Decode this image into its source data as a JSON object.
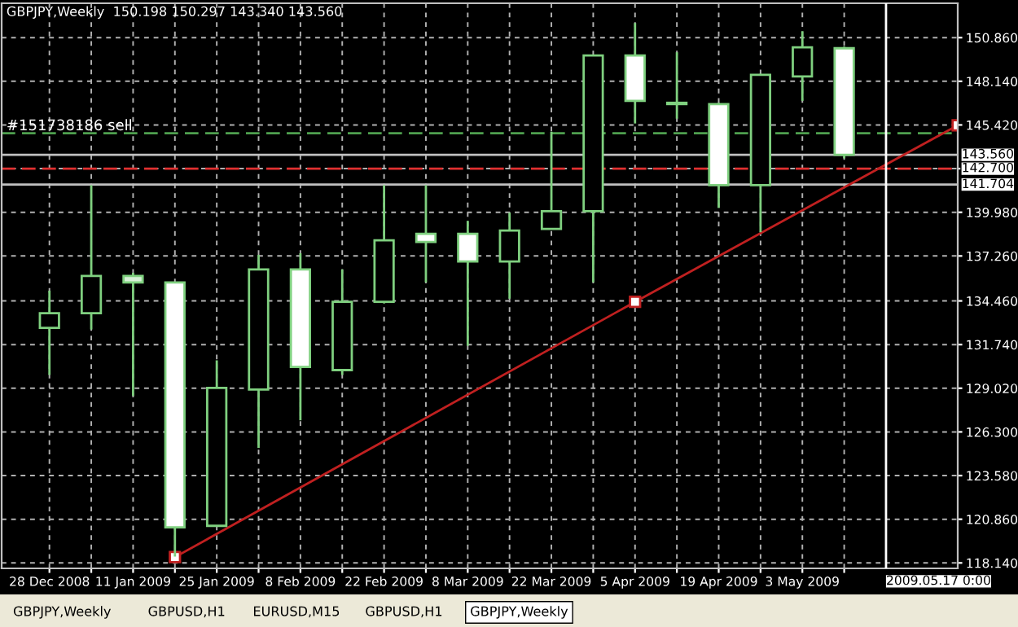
{
  "chart_data": {
    "type": "candlestick",
    "title": "GBPJPY,Weekly  150.198 150.297 143.340 143.560",
    "x": [
      "2008-12-28",
      "2009-01-04",
      "2009-01-11",
      "2009-01-18",
      "2009-01-25",
      "2009-02-01",
      "2009-02-08",
      "2009-02-15",
      "2009-02-22",
      "2009-03-01",
      "2009-03-08",
      "2009-03-15",
      "2009-03-22",
      "2009-03-29",
      "2009-04-05",
      "2009-04-12",
      "2009-04-19",
      "2009-04-26",
      "2009-05-03",
      "2009-05-10"
    ],
    "ohlc": [
      [
        132.78,
        135.1,
        129.85,
        133.69
      ],
      [
        133.69,
        141.67,
        132.68,
        136.01
      ],
      [
        136.01,
        136.21,
        128.54,
        135.61
      ],
      [
        135.61,
        135.61,
        118.54,
        120.35
      ],
      [
        120.45,
        130.76,
        120.45,
        129.04
      ],
      [
        128.94,
        137.33,
        125.3,
        136.42
      ],
      [
        136.42,
        137.43,
        127.02,
        130.35
      ],
      [
        130.15,
        136.42,
        129.85,
        134.4
      ],
      [
        134.4,
        141.67,
        134.3,
        138.23
      ],
      [
        138.64,
        141.67,
        135.61,
        138.13
      ],
      [
        138.64,
        139.45,
        131.67,
        136.92
      ],
      [
        136.92,
        139.95,
        134.6,
        138.84
      ],
      [
        138.94,
        145.0,
        138.9,
        140.05
      ],
      [
        140.05,
        149.8,
        135.61,
        149.75
      ],
      [
        149.75,
        151.77,
        145.51,
        146.92
      ],
      [
        146.72,
        149.95,
        145.81,
        146.72
      ],
      [
        146.72,
        146.8,
        140.25,
        141.67
      ],
      [
        141.67,
        148.6,
        138.74,
        148.54
      ],
      [
        148.44,
        151.26,
        146.92,
        150.25
      ],
      [
        150.198,
        150.297,
        143.34,
        143.56
      ]
    ],
    "color": "#7fd07f",
    "colors": [
      "#000000",
      "#000000",
      "#d8f0d8",
      "#ffffff",
      "#000000",
      "#000000",
      "#ffffff",
      "#000000",
      "#000000",
      "#ffffff",
      "#ffffff",
      "#000000",
      "#000000",
      "#000000",
      "#ffffff",
      "#00ff00",
      "#ffffff",
      "#000000",
      "#000000",
      "#ffffff"
    ],
    "series": [
      {
        "type": "line",
        "color": "#c02020",
        "marker": "square",
        "x": [
          "2009-01-18",
          "2009-04-05",
          "2009-05-29"
        ],
        "values": [
          118.5,
          134.4,
          145.4
        ]
      }
    ],
    "xlim": [
      "2008-12-20",
      "2009-05-29"
    ],
    "xticks": [
      {
        "value": "2008-12-28",
        "label": "28 Dec 2008"
      },
      {
        "value": "2009-01-04",
        "label": null
      },
      {
        "value": "2009-01-11",
        "label": "11 Jan 2009"
      },
      {
        "value": "2009-01-18",
        "label": null
      },
      {
        "value": "2009-01-25",
        "label": "25 Jan 2009"
      },
      {
        "value": "2009-02-01",
        "label": null
      },
      {
        "value": "2009-02-08",
        "label": "8 Feb 2009"
      },
      {
        "value": "2009-02-15",
        "label": null
      },
      {
        "value": "2009-02-22",
        "label": "22 Feb 2009"
      },
      {
        "value": "2009-03-01",
        "label": null
      },
      {
        "value": "2009-03-08",
        "label": "8 Mar 2009"
      },
      {
        "value": "2009-03-15",
        "label": null
      },
      {
        "value": "2009-03-22",
        "label": "22 Mar 2009"
      },
      {
        "value": "2009-03-29",
        "label": null
      },
      {
        "value": "2009-04-05",
        "label": "5 Apr 2009"
      },
      {
        "value": "2009-04-12",
        "label": null
      },
      {
        "value": "2009-04-19",
        "label": "19 Apr 2009"
      },
      {
        "value": "2009-04-26",
        "label": null
      },
      {
        "value": "2009-05-03",
        "label": "3 May 2009"
      },
      {
        "value": "2009-05-10",
        "label": null
      }
    ],
    "ylim": [
      117.8,
      153.0
    ],
    "yticks": [
      {
        "value": 150.86,
        "label": "150.860"
      },
      {
        "value": 148.14,
        "label": "148.140"
      },
      {
        "value": 145.42,
        "label": "145.420"
      },
      {
        "value": 142.7,
        "label": null
      },
      {
        "value": 139.98,
        "label": "139.980"
      },
      {
        "value": 137.26,
        "label": "137.260"
      },
      {
        "value": 134.46,
        "label": "134.460"
      },
      {
        "value": 131.74,
        "label": "131.740"
      },
      {
        "value": 129.02,
        "label": "129.020"
      },
      {
        "value": 126.3,
        "label": "126.300"
      },
      {
        "value": 123.58,
        "label": "123.580"
      },
      {
        "value": 120.86,
        "label": "120.860"
      },
      {
        "value": 118.14,
        "label": "118.140"
      }
    ],
    "grid": true,
    "ref_lines": [
      {
        "axis": "y",
        "value": 144.9,
        "label": "#151738186 sell",
        "color": "#4fa04f",
        "line_style": "dashed"
      },
      {
        "axis": "y",
        "value": 143.56,
        "label": "143.560",
        "color": "#c0c0c0",
        "line_style": "solid"
      },
      {
        "axis": "y",
        "value": 142.7,
        "label": "142.700",
        "color": "#e03030",
        "line_style": "dashed"
      },
      {
        "axis": "y",
        "value": 141.704,
        "label": "141.704",
        "color": "#c0c0c0",
        "line_style": "solid"
      },
      {
        "axis": "x",
        "value": "2009-05-17",
        "label": "2009.05.17 0:00",
        "color": "#ffffff",
        "line_style": "solid"
      }
    ],
    "annotations": [
      "GBPJPY,Weekly",
      "GBPUSD,H1",
      "EURUSD,M15",
      "GBPUSD,H1",
      "GBPJPY,Weekly"
    ]
  }
}
